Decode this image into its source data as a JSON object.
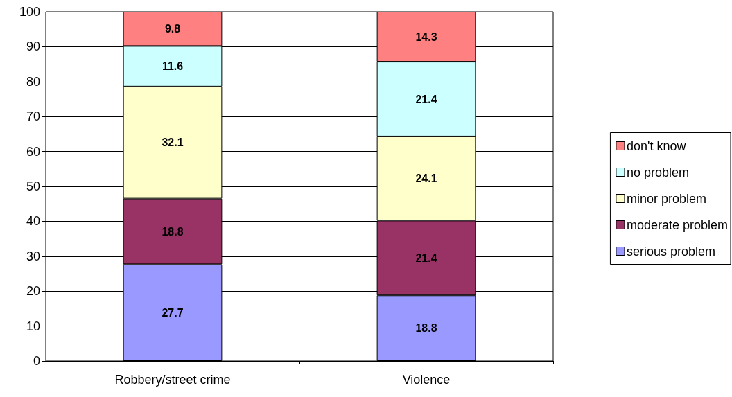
{
  "chart_data": {
    "type": "bar",
    "stacked": true,
    "categories": [
      "Robbery/street crime",
      "Violence"
    ],
    "series": [
      {
        "name": "serious problem",
        "color": "#9999ff",
        "values": [
          27.7,
          18.8
        ]
      },
      {
        "name": "moderate problem",
        "color": "#993366",
        "values": [
          18.8,
          21.4
        ]
      },
      {
        "name": "minor problem",
        "color": "#ffffcc",
        "values": [
          32.1,
          24.1
        ]
      },
      {
        "name": "no problem",
        "color": "#ccffff",
        "values": [
          11.6,
          21.4
        ]
      },
      {
        "name": "don't know",
        "color": "#ff8080",
        "values": [
          9.8,
          14.3
        ]
      }
    ],
    "ylim": [
      0,
      100
    ],
    "yticks": [
      0,
      10,
      20,
      30,
      40,
      50,
      60,
      70,
      80,
      90,
      100
    ],
    "grid": "y",
    "legend": "right",
    "data_labels": true
  }
}
